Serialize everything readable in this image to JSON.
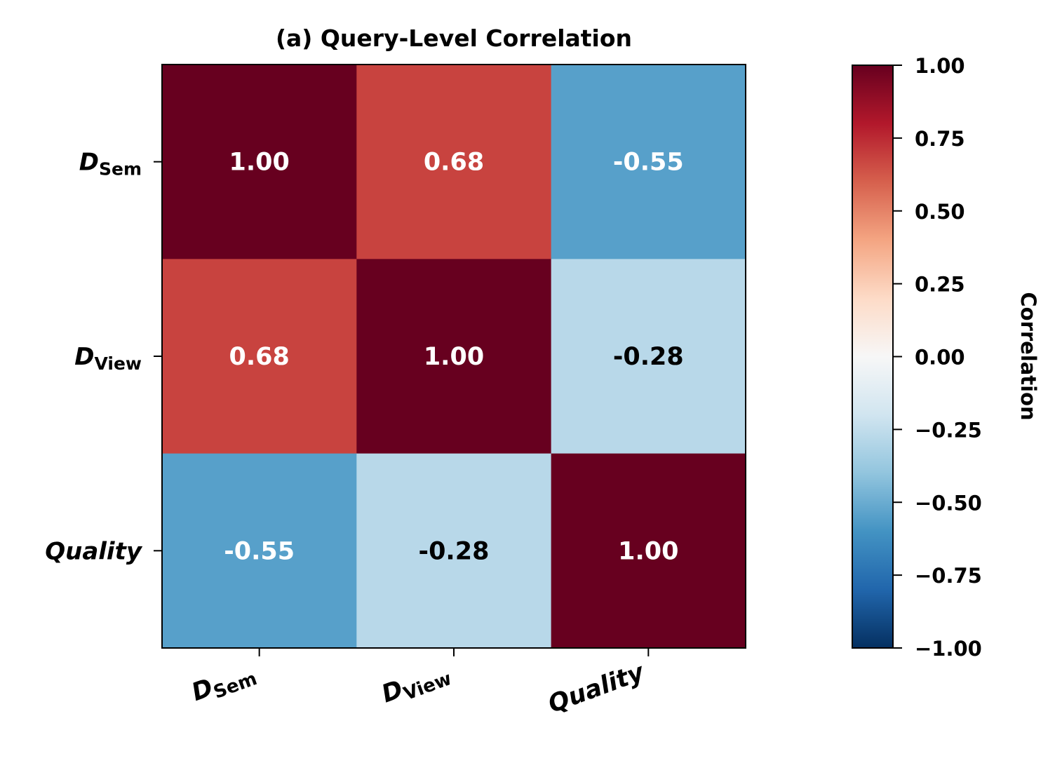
{
  "chart_data": {
    "type": "heatmap",
    "title": "(a) Query-Level Correlation",
    "row_labels": [
      {
        "base": "D",
        "sub": "Sem"
      },
      {
        "base": "D",
        "sub": "View"
      },
      {
        "base": "",
        "sub": "",
        "plain": "Quality"
      }
    ],
    "col_labels": [
      {
        "base": "D",
        "sub": "Sem"
      },
      {
        "base": "D",
        "sub": "View"
      },
      {
        "base": "",
        "sub": "",
        "plain": "Quality"
      }
    ],
    "values": [
      [
        1.0,
        0.68,
        -0.55
      ],
      [
        0.68,
        1.0,
        -0.28
      ],
      [
        -0.55,
        -0.28,
        1.0
      ]
    ],
    "value_labels": [
      [
        "1.00",
        "0.68",
        "-0.55"
      ],
      [
        "0.68",
        "1.00",
        "-0.28"
      ],
      [
        "-0.55",
        "-0.28",
        "1.00"
      ]
    ],
    "colorbar": {
      "label": "Correlation",
      "vmin": -1.0,
      "vmax": 1.0,
      "ticks": [
        1.0,
        0.75,
        0.5,
        0.25,
        0.0,
        -0.25,
        -0.5,
        -0.75,
        -1.0
      ],
      "tick_labels": [
        "1.00",
        "0.75",
        "0.50",
        "0.25",
        "0.00",
        "−0.25",
        "−0.50",
        "−0.75",
        "−1.00"
      ],
      "colormap": "RdBu_r",
      "colors": [
        "#053061",
        "#2166ac",
        "#4393c3",
        "#92c5de",
        "#d1e5f0",
        "#f7f7f7",
        "#fddbc7",
        "#f4a582",
        "#d6604d",
        "#b2182b",
        "#67001f"
      ]
    }
  }
}
